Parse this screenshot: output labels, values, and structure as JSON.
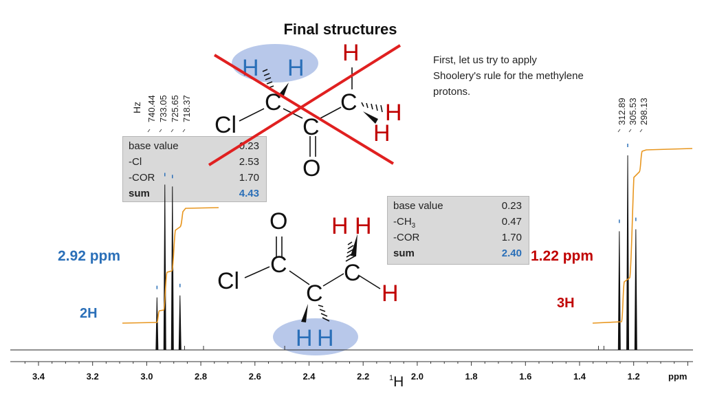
{
  "title": "Final structures",
  "note": "First, let us try to apply Shoolery's rule for the methylene protons.",
  "table1": {
    "rows": [
      {
        "label": "base value",
        "value": "0.23"
      },
      {
        "label": "-Cl",
        "value": "2.53"
      },
      {
        "label": "-COR",
        "value": "1.70"
      }
    ],
    "sum_label": "sum",
    "sum_value": "4.43"
  },
  "table2": {
    "rows": [
      {
        "label": "base value",
        "value": "0.23"
      },
      {
        "label": "-CH",
        "sub": "3",
        "value": "0.47"
      },
      {
        "label": "-COR",
        "value": "1.70"
      }
    ],
    "sum_label": "sum",
    "sum_value": "2.40"
  },
  "shift_left": "2.92 ppm",
  "shift_right": "1.22 ppm",
  "integral_left": "2H",
  "integral_right": "3H",
  "hz_unit": "Hz",
  "hz_left": [
    "740.44",
    "733.05",
    "725.65",
    "718.37"
  ],
  "hz_right": [
    "312.89",
    "305.53",
    "298.13"
  ],
  "nucleus": {
    "mass": "1",
    "symbol": "H"
  },
  "atoms": {
    "H": "H",
    "C": "C",
    "Cl": "Cl",
    "O": "O"
  },
  "colors": {
    "blue": "#2a6fb8",
    "red": "#c00000",
    "integral": "#e8961e",
    "highlight": "#b8c8ea",
    "cross": "#e02020"
  },
  "chart_data": {
    "type": "line",
    "xlabel": "ppm",
    "xlim": [
      3.45,
      1.0
    ],
    "x_reversed": true,
    "x_ticks": [
      3.4,
      3.2,
      3.0,
      2.8,
      2.6,
      2.4,
      2.2,
      2.0,
      1.8,
      1.6,
      1.4,
      1.2
    ],
    "x_tick_labels": [
      "3.4",
      "3.2",
      "3.0",
      "2.8",
      "2.6",
      "2.4",
      "2.2",
      "2.0",
      "1.8",
      "1.6",
      "1.4",
      "1.2"
    ],
    "peaks": [
      {
        "ppm": 2.962,
        "intensity": 0.27
      },
      {
        "ppm": 2.933,
        "intensity": 0.85
      },
      {
        "ppm": 2.905,
        "intensity": 0.84
      },
      {
        "ppm": 2.877,
        "intensity": 0.28
      },
      {
        "ppm": 1.253,
        "intensity": 0.61
      },
      {
        "ppm": 1.222,
        "intensity": 1.0
      },
      {
        "ppm": 1.192,
        "intensity": 0.62
      }
    ],
    "integrals": [
      {
        "from_ppm": 3.02,
        "to_ppm": 2.82,
        "label": "2H"
      },
      {
        "from_ppm": 1.35,
        "to_ppm": 1.05,
        "label": "3H"
      }
    ]
  }
}
